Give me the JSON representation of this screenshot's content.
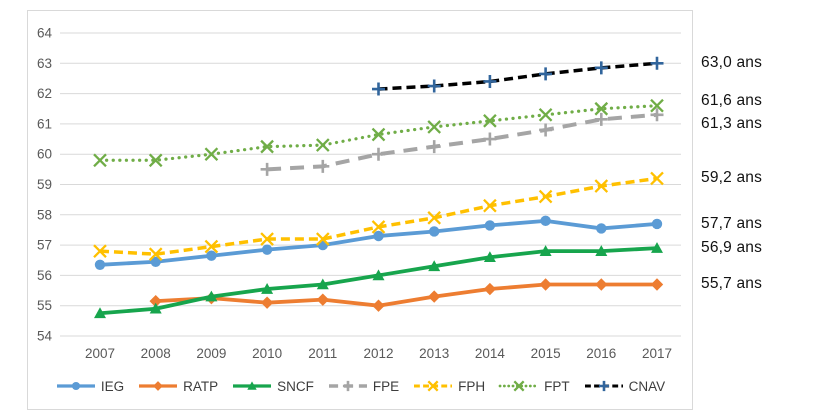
{
  "chart_data": {
    "type": "line",
    "title": "",
    "xlabel": "",
    "ylabel": "",
    "x": [
      "2007",
      "2008",
      "2009",
      "2010",
      "2011",
      "2012",
      "2013",
      "2014",
      "2015",
      "2016",
      "2017"
    ],
    "ylim": [
      54,
      64
    ],
    "yticks": [
      64,
      63,
      62,
      61,
      60,
      59,
      58,
      57,
      56,
      55,
      54
    ],
    "grid": true,
    "legend_position": "bottom",
    "value_unit": "ans",
    "series": [
      {
        "name": "IEG",
        "color": "#5B9BD5",
        "marker": "circle",
        "line_style": "solid",
        "end_label": "57,7 ans",
        "end_label_dy": 0,
        "values": [
          56.35,
          56.45,
          56.65,
          56.85,
          57.0,
          57.3,
          57.45,
          57.65,
          57.8,
          57.55,
          57.7
        ]
      },
      {
        "name": "RATP",
        "color": "#ED7D31",
        "marker": "diamond",
        "line_style": "solid",
        "end_label": "55,7 ans",
        "end_label_dy": 0,
        "values": [
          null,
          55.15,
          55.25,
          55.1,
          55.2,
          55.0,
          55.3,
          55.55,
          55.7,
          55.7,
          55.7
        ]
      },
      {
        "name": "SNCF",
        "color": "#17A54D",
        "marker": "triangle",
        "line_style": "solid",
        "end_label": "56,9 ans",
        "end_label_dy": 0,
        "values": [
          54.75,
          54.9,
          55.3,
          55.55,
          55.7,
          56.0,
          56.3,
          56.6,
          56.8,
          56.8,
          56.9
        ]
      },
      {
        "name": "FPE",
        "color": "#A5A5A5",
        "marker": "plus",
        "line_style": "long-dash",
        "end_label": "61,3 ans",
        "end_label_dy": 9,
        "values": [
          null,
          null,
          null,
          59.5,
          59.6,
          60.0,
          60.25,
          60.5,
          60.8,
          61.15,
          61.3
        ]
      },
      {
        "name": "FPH",
        "color": "#FFC000",
        "marker": "x",
        "line_style": "dash",
        "end_label": "59,2 ans",
        "end_label_dy": 0,
        "values": [
          56.8,
          56.7,
          56.95,
          57.2,
          57.2,
          57.6,
          57.9,
          58.3,
          58.6,
          58.95,
          59.2
        ]
      },
      {
        "name": "FPT",
        "color": "#70AD47",
        "marker": "x",
        "line_style": "dot",
        "end_label": "61,6 ans",
        "end_label_dy": -5,
        "values": [
          59.8,
          59.8,
          60.0,
          60.25,
          60.3,
          60.65,
          60.9,
          61.1,
          61.3,
          61.5,
          61.6
        ]
      },
      {
        "name": "CNAV",
        "color": "#000000",
        "marker_color": "#31659C",
        "marker": "plus",
        "line_style": "dash",
        "end_label": "63,0 ans",
        "end_label_dy": 0,
        "values": [
          null,
          null,
          null,
          null,
          null,
          62.15,
          62.25,
          62.4,
          62.65,
          62.85,
          63.0
        ]
      }
    ]
  }
}
